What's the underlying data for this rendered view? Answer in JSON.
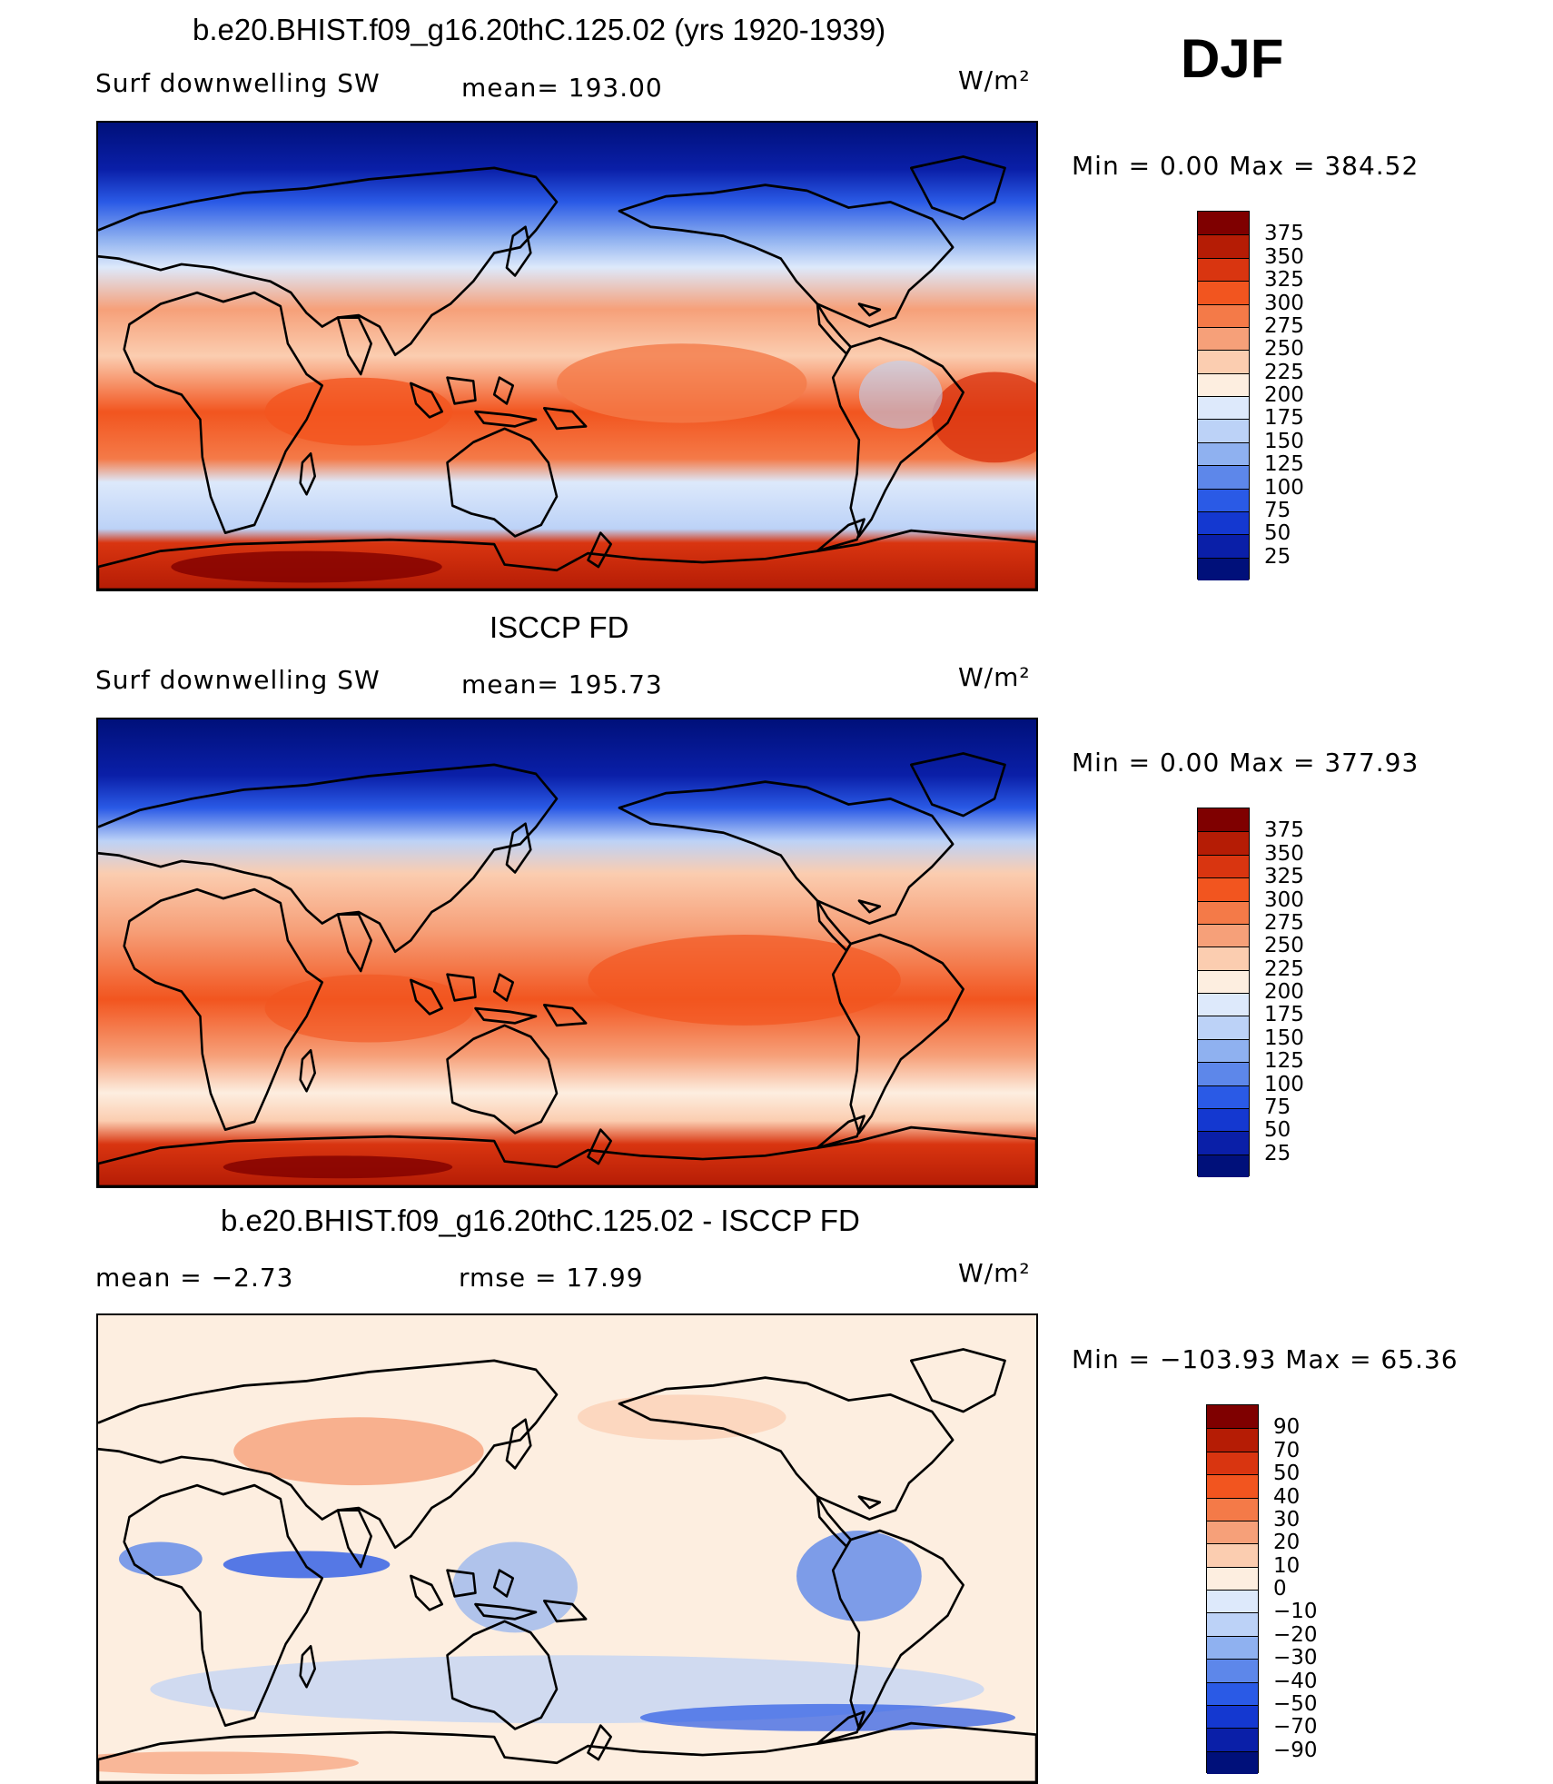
{
  "season": "DJF",
  "panels": [
    {
      "title": "b.e20.BHIST.f09_g16.20thC.125.02 (yrs 1920-1939)",
      "left_label": "Surf  downwelling  SW",
      "center_label": "mean=  193.00",
      "units": "W/m²",
      "minmax": "Min  =      0.00  Max  =  384.52"
    },
    {
      "title": "ISCCP FD",
      "left_label": "Surf  downwelling  SW",
      "center_label": "mean=  195.73",
      "units": "W/m²",
      "minmax": "Min  =      0.00  Max  =  377.93"
    },
    {
      "title": "b.e20.BHIST.f09_g16.20thC.125.02 - ISCCP FD",
      "left_label": "mean  =    −2.73",
      "center_label": "rmse  =    17.99",
      "units": "W/m²",
      "minmax": "Min  = −103.93  Max  =    65.36"
    }
  ],
  "colorbars": {
    "absolute": {
      "labels": [
        "375",
        "350",
        "325",
        "300",
        "275",
        "250",
        "225",
        "200",
        "175",
        "150",
        "125",
        "100",
        "75",
        "50",
        "25"
      ],
      "colors": [
        "#7f0000",
        "#b51c05",
        "#d93510",
        "#f2551f",
        "#f47a48",
        "#f6a079",
        "#fbcdb0",
        "#fdeee0",
        "#dde9fb",
        "#bcd2f7",
        "#8fb1f0",
        "#5d87ea",
        "#2a5ae6",
        "#1438d0",
        "#0a1fa8",
        "#00107a"
      ]
    },
    "difference": {
      "labels": [
        "90",
        "70",
        "50",
        "40",
        "30",
        "20",
        "10",
        "0",
        "−10",
        "−20",
        "−30",
        "−40",
        "−50",
        "−70",
        "−90"
      ],
      "colors": [
        "#7f0000",
        "#b51c05",
        "#d93510",
        "#f2551f",
        "#f47a48",
        "#f6a079",
        "#fbcdb0",
        "#fdeee0",
        "#dde9fb",
        "#bcd2f7",
        "#8fb1f0",
        "#5d87ea",
        "#2a5ae6",
        "#1438d0",
        "#0a1fa8",
        "#00107a"
      ]
    }
  },
  "chart_data": [
    {
      "type": "heatmap",
      "title": "b.e20.BHIST.f09_g16.20thC.125.02 (yrs 1920-1939)",
      "variable": "Surf downwelling SW",
      "units": "W/m2",
      "mean": 193.0,
      "min": 0.0,
      "max": 384.52,
      "contour_levels": [
        25,
        50,
        75,
        100,
        125,
        150,
        175,
        200,
        225,
        250,
        275,
        300,
        325,
        350,
        375
      ]
    },
    {
      "type": "heatmap",
      "title": "ISCCP FD",
      "variable": "Surf downwelling SW",
      "units": "W/m2",
      "mean": 195.73,
      "min": 0.0,
      "max": 377.93,
      "contour_levels": [
        25,
        50,
        75,
        100,
        125,
        150,
        175,
        200,
        225,
        250,
        275,
        300,
        325,
        350,
        375
      ]
    },
    {
      "type": "heatmap",
      "title": "b.e20.BHIST.f09_g16.20thC.125.02 - ISCCP FD",
      "units": "W/m2",
      "mean": -2.73,
      "rmse": 17.99,
      "min": -103.93,
      "max": 65.36,
      "contour_levels": [
        -90,
        -70,
        -50,
        -40,
        -30,
        -20,
        -10,
        0,
        10,
        20,
        30,
        40,
        50,
        70,
        90
      ]
    }
  ]
}
